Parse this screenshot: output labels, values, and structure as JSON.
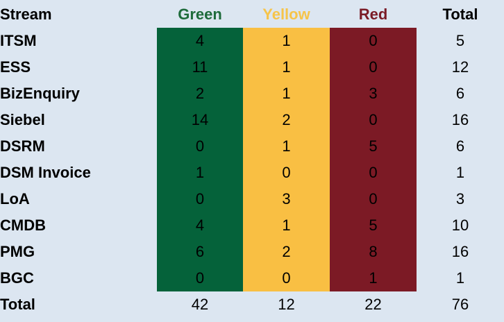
{
  "table": {
    "headers": {
      "stream": "Stream",
      "green": "Green",
      "yellow": "Yellow",
      "red": "Red",
      "total": "Total"
    },
    "rows": [
      {
        "stream": "ITSM",
        "green": "4",
        "yellow": "1",
        "red": "0",
        "total": "5"
      },
      {
        "stream": "ESS",
        "green": "11",
        "yellow": "1",
        "red": "0",
        "total": "12"
      },
      {
        "stream": "BizEnquiry",
        "green": "2",
        "yellow": "1",
        "red": "3",
        "total": "6"
      },
      {
        "stream": "Siebel",
        "green": "14",
        "yellow": "2",
        "red": "0",
        "total": "16"
      },
      {
        "stream": "DSRM",
        "green": "0",
        "yellow": "1",
        "red": "5",
        "total": "6"
      },
      {
        "stream": "DSM Invoice",
        "green": "1",
        "yellow": "0",
        "red": "0",
        "total": "1"
      },
      {
        "stream": "LoA",
        "green": "0",
        "yellow": "3",
        "red": "0",
        "total": "3"
      },
      {
        "stream": "CMDB",
        "green": "4",
        "yellow": "1",
        "red": "5",
        "total": "10"
      },
      {
        "stream": "PMG",
        "green": "6",
        "yellow": "2",
        "red": "8",
        "total": "16"
      },
      {
        "stream": "BGC",
        "green": "0",
        "yellow": "0",
        "red": "1",
        "total": "1"
      }
    ],
    "totals": {
      "stream": "Total",
      "green": "42",
      "yellow": "12",
      "red": "22",
      "total": "76"
    }
  },
  "colors": {
    "background": "#dce6f1",
    "green_fill": "#05623a",
    "yellow_fill": "#f9bf43",
    "red_fill": "#7c1a25",
    "green_header": "#1e6b3b",
    "yellow_header": "#f6c44a",
    "red_header": "#7a1b26"
  }
}
